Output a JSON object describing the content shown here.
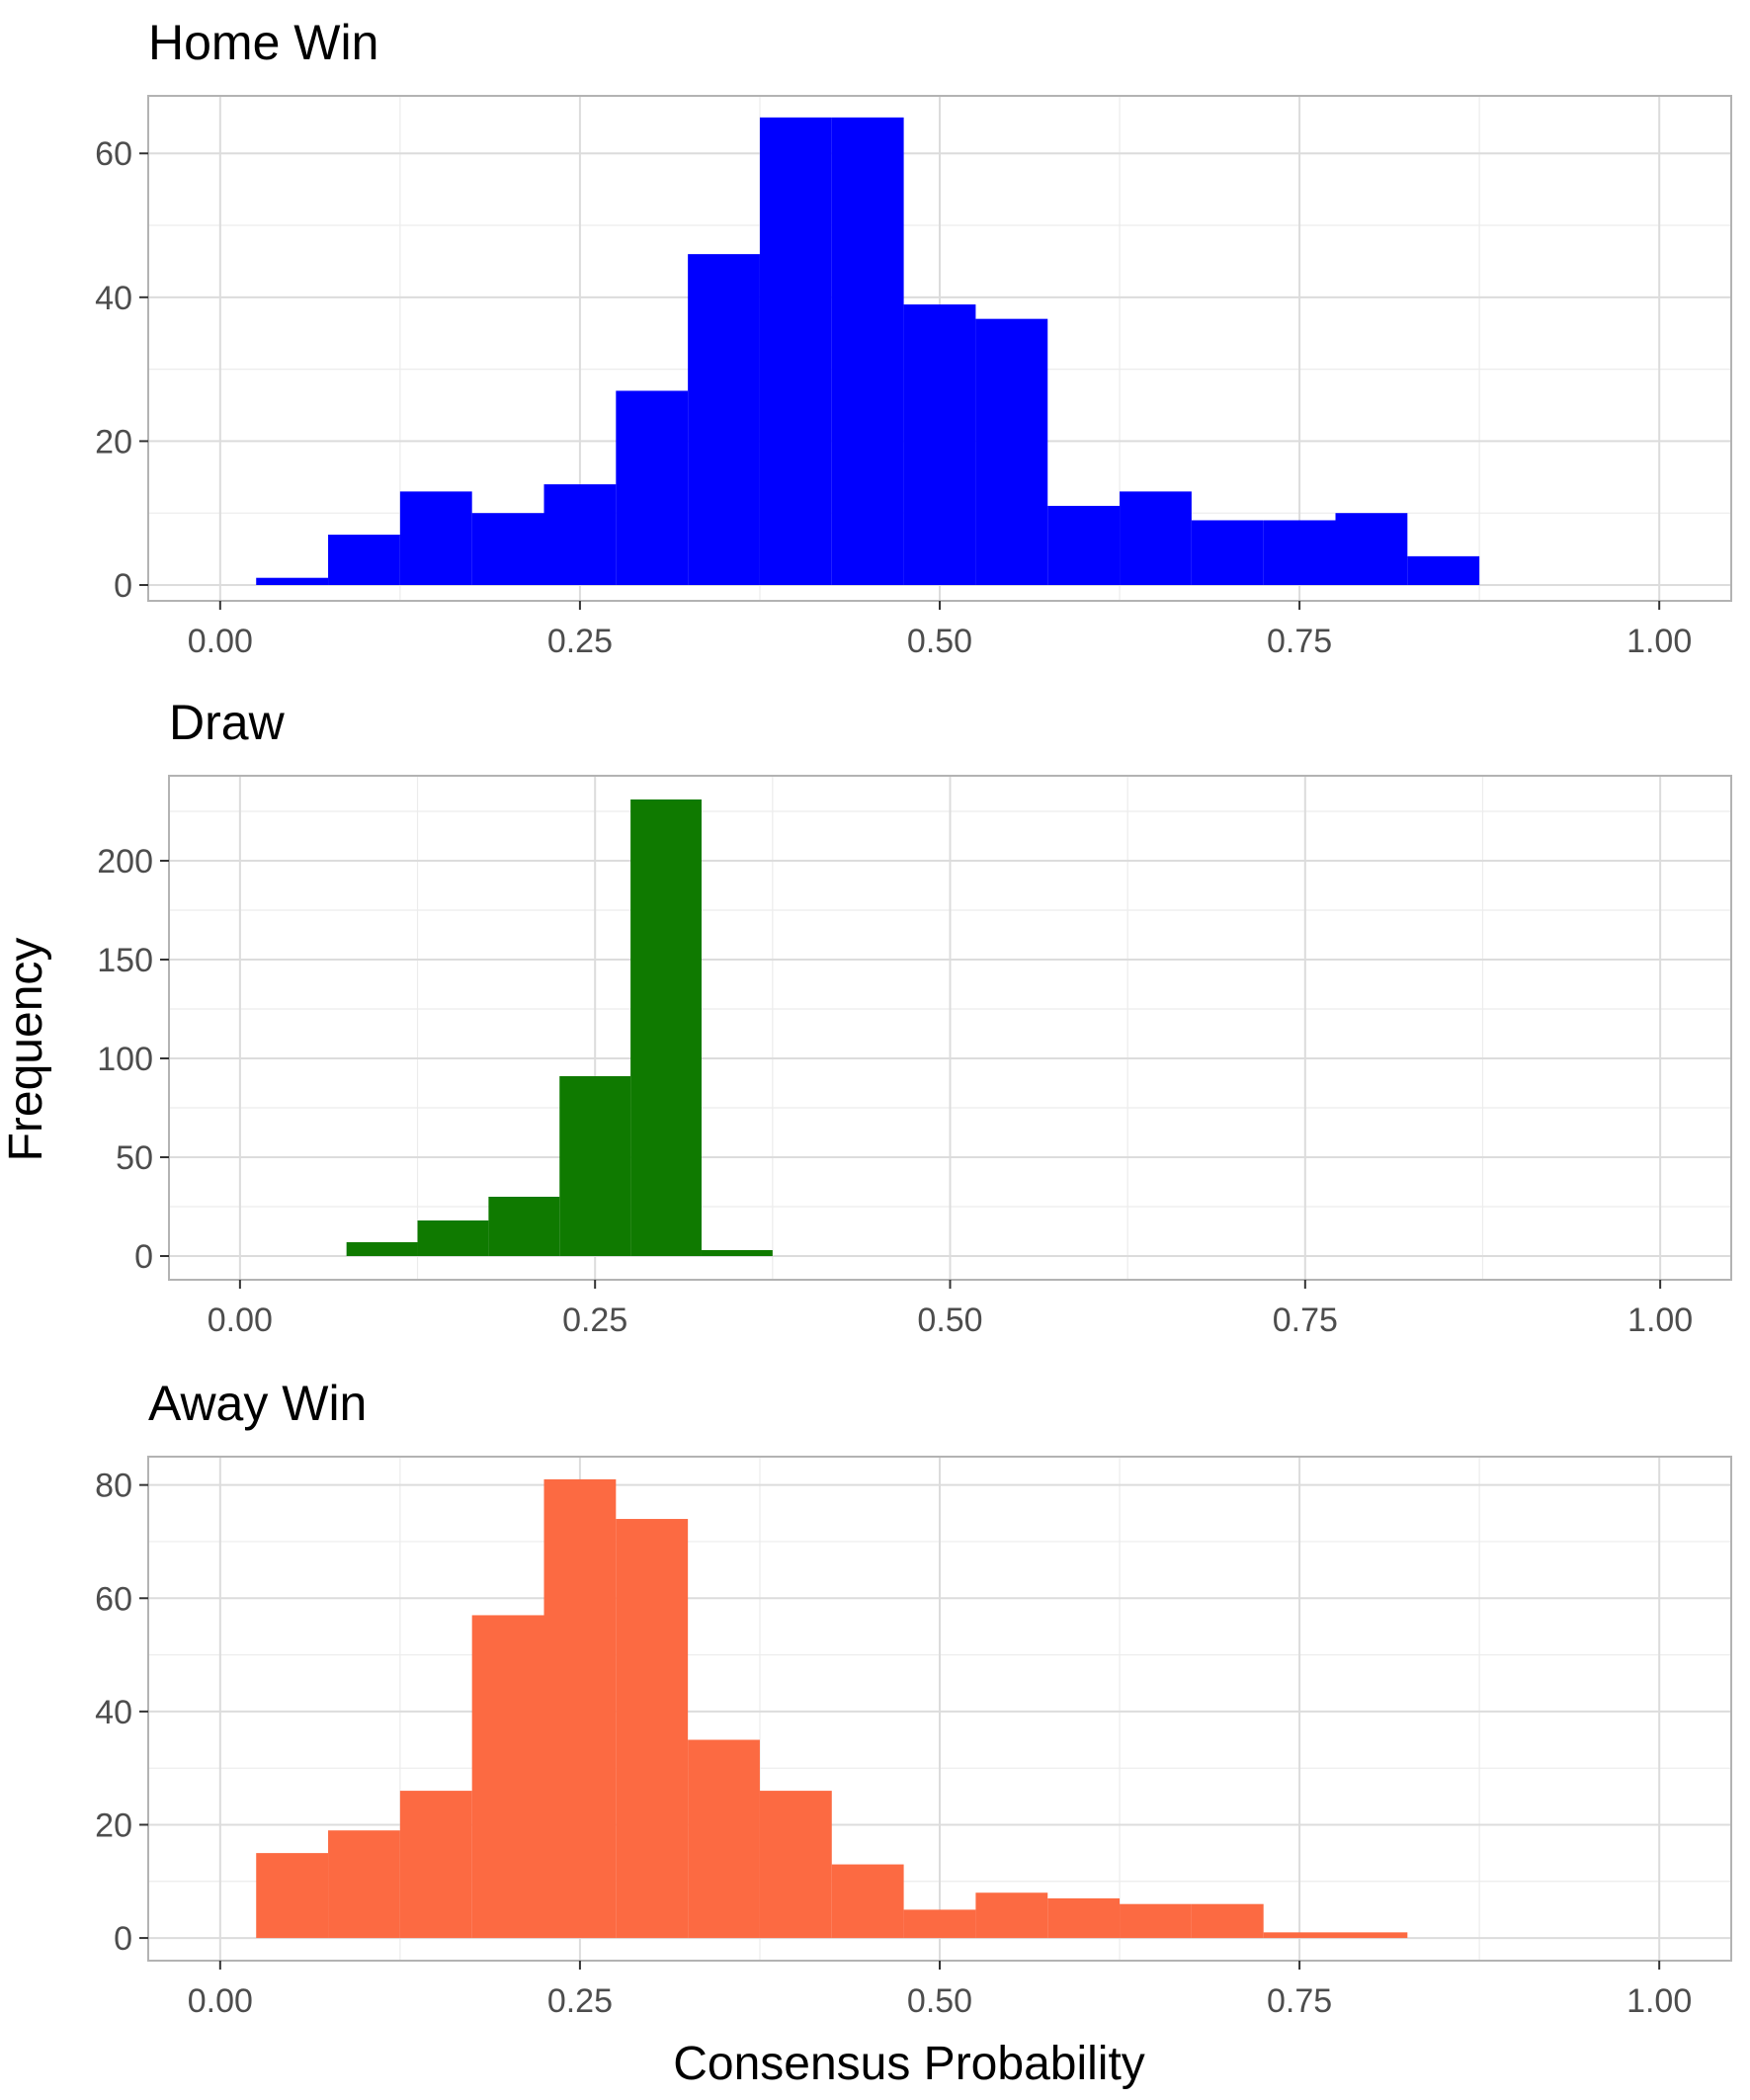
{
  "figure": {
    "ylabel": "Frequency",
    "xlabel": "Consensus Probability"
  },
  "chart_data": [
    {
      "type": "bar",
      "title": "Home Win",
      "color": "#0000FF",
      "bin_width": 0.05,
      "bins": [
        {
          "x0": 0.025,
          "x1": 0.075,
          "count": 1
        },
        {
          "x0": 0.075,
          "x1": 0.125,
          "count": 7
        },
        {
          "x0": 0.125,
          "x1": 0.175,
          "count": 13
        },
        {
          "x0": 0.175,
          "x1": 0.225,
          "count": 10
        },
        {
          "x0": 0.225,
          "x1": 0.275,
          "count": 14
        },
        {
          "x0": 0.275,
          "x1": 0.325,
          "count": 27
        },
        {
          "x0": 0.325,
          "x1": 0.375,
          "count": 46
        },
        {
          "x0": 0.375,
          "x1": 0.425,
          "count": 65
        },
        {
          "x0": 0.425,
          "x1": 0.475,
          "count": 65
        },
        {
          "x0": 0.475,
          "x1": 0.525,
          "count": 39
        },
        {
          "x0": 0.525,
          "x1": 0.575,
          "count": 37
        },
        {
          "x0": 0.575,
          "x1": 0.625,
          "count": 11
        },
        {
          "x0": 0.625,
          "x1": 0.675,
          "count": 13
        },
        {
          "x0": 0.675,
          "x1": 0.725,
          "count": 9
        },
        {
          "x0": 0.725,
          "x1": 0.775,
          "count": 9
        },
        {
          "x0": 0.775,
          "x1": 0.825,
          "count": 10
        },
        {
          "x0": 0.825,
          "x1": 0.875,
          "count": 4
        }
      ],
      "xlim": [
        -0.05,
        1.05
      ],
      "ylim": [
        -2.2,
        68
      ],
      "xticks": [
        0,
        0.25,
        0.5,
        0.75,
        1
      ],
      "xtick_labels": [
        "0.00",
        "0.25",
        "0.50",
        "0.75",
        "1.00"
      ],
      "yticks": [
        0,
        20,
        40,
        60
      ],
      "ytick_labels": [
        "0",
        "20",
        "40",
        "60"
      ],
      "y_minor": [
        10,
        30,
        50
      ],
      "grid": true
    },
    {
      "type": "bar",
      "title": "Draw",
      "color": "#0F7A00",
      "bin_width": 0.05,
      "bins": [
        {
          "x0": 0.075,
          "x1": 0.125,
          "count": 7
        },
        {
          "x0": 0.125,
          "x1": 0.175,
          "count": 18
        },
        {
          "x0": 0.175,
          "x1": 0.225,
          "count": 30
        },
        {
          "x0": 0.225,
          "x1": 0.275,
          "count": 91
        },
        {
          "x0": 0.275,
          "x1": 0.325,
          "count": 231
        },
        {
          "x0": 0.325,
          "x1": 0.375,
          "count": 3
        }
      ],
      "xlim": [
        -0.05,
        1.05
      ],
      "ylim": [
        -12,
        243
      ],
      "xticks": [
        0,
        0.25,
        0.5,
        0.75,
        1
      ],
      "xtick_labels": [
        "0.00",
        "0.25",
        "0.50",
        "0.75",
        "1.00"
      ],
      "yticks": [
        0,
        50,
        100,
        150,
        200
      ],
      "ytick_labels": [
        "0",
        "50",
        "100",
        "150",
        "200"
      ],
      "y_minor": [
        25,
        75,
        125,
        175,
        225
      ],
      "grid": true
    },
    {
      "type": "bar",
      "title": "Away Win",
      "color": "#FC6A42",
      "bin_width": 0.05,
      "bins": [
        {
          "x0": 0.025,
          "x1": 0.075,
          "count": 15
        },
        {
          "x0": 0.075,
          "x1": 0.125,
          "count": 19
        },
        {
          "x0": 0.125,
          "x1": 0.175,
          "count": 26
        },
        {
          "x0": 0.175,
          "x1": 0.225,
          "count": 57
        },
        {
          "x0": 0.225,
          "x1": 0.275,
          "count": 81
        },
        {
          "x0": 0.275,
          "x1": 0.325,
          "count": 74
        },
        {
          "x0": 0.325,
          "x1": 0.375,
          "count": 35
        },
        {
          "x0": 0.375,
          "x1": 0.425,
          "count": 26
        },
        {
          "x0": 0.425,
          "x1": 0.475,
          "count": 13
        },
        {
          "x0": 0.475,
          "x1": 0.525,
          "count": 5
        },
        {
          "x0": 0.525,
          "x1": 0.575,
          "count": 8
        },
        {
          "x0": 0.575,
          "x1": 0.625,
          "count": 7
        },
        {
          "x0": 0.625,
          "x1": 0.675,
          "count": 6
        },
        {
          "x0": 0.675,
          "x1": 0.725,
          "count": 6
        },
        {
          "x0": 0.725,
          "x1": 0.775,
          "count": 1
        },
        {
          "x0": 0.775,
          "x1": 0.825,
          "count": 1
        }
      ],
      "xlim": [
        -0.05,
        1.05
      ],
      "ylim": [
        -4,
        85
      ],
      "xticks": [
        0,
        0.25,
        0.5,
        0.75,
        1
      ],
      "xtick_labels": [
        "0.00",
        "0.25",
        "0.50",
        "0.75",
        "1.00"
      ],
      "yticks": [
        0,
        20,
        40,
        60,
        80
      ],
      "ytick_labels": [
        "0",
        "20",
        "40",
        "60",
        "80"
      ],
      "y_minor": [
        10,
        30,
        50,
        70
      ],
      "grid": true
    }
  ]
}
